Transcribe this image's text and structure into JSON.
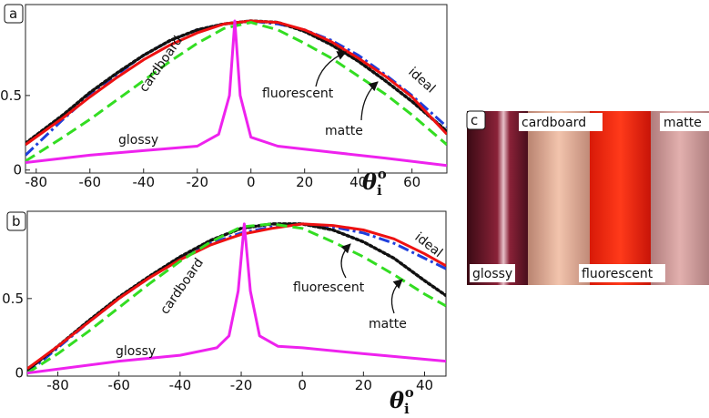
{
  "chart_data": [
    {
      "type": "line",
      "panel_label": "a",
      "xlabel": {
        "symbol": "θ",
        "sub": "i",
        "sup": "o"
      },
      "xlim": [
        -84,
        73
      ],
      "ylim": [
        -0.02,
        1.11
      ],
      "xticks": [
        -80,
        -60,
        -40,
        -20,
        0,
        20,
        40,
        60
      ],
      "yticks": [
        0,
        0.5
      ],
      "series": [
        {
          "name": "ideal",
          "color": "#1f3fdc",
          "line_style": "dashdot",
          "x": [
            -84,
            -70,
            -60,
            -50,
            -40,
            -30,
            -20,
            -10,
            0,
            10,
            20,
            30,
            40,
            50,
            60,
            73
          ],
          "values": [
            0.1,
            0.34,
            0.5,
            0.64,
            0.77,
            0.87,
            0.94,
            0.98,
            1.0,
            0.98,
            0.94,
            0.87,
            0.77,
            0.64,
            0.5,
            0.29
          ]
        },
        {
          "name": "cardboard",
          "color": "#111111",
          "line_style": "dotted",
          "x": [
            -84,
            -70,
            -60,
            -50,
            -40,
            -30,
            -20,
            -10,
            0,
            10,
            20,
            30,
            40,
            50,
            60,
            73
          ],
          "values": [
            0.18,
            0.37,
            0.52,
            0.65,
            0.77,
            0.87,
            0.94,
            0.98,
            1.0,
            0.99,
            0.93,
            0.84,
            0.73,
            0.6,
            0.46,
            0.26
          ]
        },
        {
          "name": "fluorescent",
          "color": "#ee1111",
          "line_style": "solid",
          "x": [
            -84,
            -70,
            -60,
            -50,
            -40,
            -30,
            -20,
            -10,
            0,
            10,
            20,
            30,
            40,
            50,
            60,
            73
          ],
          "values": [
            0.17,
            0.35,
            0.49,
            0.62,
            0.74,
            0.84,
            0.92,
            0.98,
            1.0,
            0.99,
            0.94,
            0.86,
            0.75,
            0.63,
            0.49,
            0.24
          ]
        },
        {
          "name": "matte",
          "color": "#33dd22",
          "line_style": "dashed",
          "x": [
            -84,
            -70,
            -60,
            -50,
            -40,
            -30,
            -20,
            -10,
            0,
            10,
            20,
            30,
            40,
            50,
            60,
            73
          ],
          "values": [
            0.06,
            0.22,
            0.34,
            0.47,
            0.6,
            0.73,
            0.85,
            0.95,
            0.99,
            0.94,
            0.85,
            0.75,
            0.63,
            0.51,
            0.37,
            0.17
          ]
        },
        {
          "name": "glossy",
          "color": "#ee22ee",
          "line_style": "solid",
          "x": [
            -84,
            -60,
            -40,
            -20,
            -12,
            -8,
            -6,
            -4,
            0,
            10,
            30,
            50,
            73
          ],
          "values": [
            0.05,
            0.1,
            0.13,
            0.16,
            0.24,
            0.5,
            1.0,
            0.5,
            0.22,
            0.16,
            0.12,
            0.08,
            0.03
          ]
        }
      ]
    },
    {
      "type": "line",
      "panel_label": "b",
      "xlabel": {
        "symbol": "θ",
        "sub": "i",
        "sup": "o"
      },
      "xlim": [
        -90,
        47
      ],
      "ylim": [
        -0.02,
        1.085
      ],
      "xticks": [
        -80,
        -60,
        -40,
        -20,
        0,
        20,
        40
      ],
      "yticks": [
        0,
        0.5
      ],
      "series": [
        {
          "name": "ideal",
          "color": "#1f3fdc",
          "line_style": "dashdot",
          "x": [
            -90,
            -80,
            -70,
            -60,
            -50,
            -40,
            -30,
            -20,
            -10,
            0,
            10,
            20,
            30,
            40,
            47
          ],
          "values": [
            0.0,
            0.17,
            0.34,
            0.5,
            0.64,
            0.77,
            0.87,
            0.94,
            0.98,
            1.0,
            0.98,
            0.94,
            0.87,
            0.77,
            0.7
          ]
        },
        {
          "name": "cardboard",
          "color": "#111111",
          "line_style": "dotted",
          "x": [
            -90,
            -80,
            -70,
            -60,
            -50,
            -40,
            -30,
            -20,
            -10,
            0,
            10,
            20,
            30,
            40,
            47
          ],
          "values": [
            0.02,
            0.18,
            0.35,
            0.51,
            0.65,
            0.78,
            0.89,
            0.97,
            1.0,
            1.0,
            0.96,
            0.88,
            0.77,
            0.62,
            0.52
          ]
        },
        {
          "name": "fluorescent",
          "color": "#ee1111",
          "line_style": "solid",
          "x": [
            -90,
            -80,
            -70,
            -60,
            -50,
            -40,
            -30,
            -20,
            -10,
            0,
            10,
            20,
            30,
            40,
            47
          ],
          "values": [
            0.03,
            0.18,
            0.34,
            0.5,
            0.64,
            0.76,
            0.86,
            0.93,
            0.97,
            1.0,
            0.99,
            0.96,
            0.9,
            0.8,
            0.72
          ]
        },
        {
          "name": "matte",
          "color": "#33dd22",
          "line_style": "dashed",
          "x": [
            -90,
            -80,
            -70,
            -60,
            -50,
            -40,
            -30,
            -20,
            -10,
            0,
            10,
            20,
            30,
            40,
            47
          ],
          "values": [
            0.0,
            0.13,
            0.28,
            0.44,
            0.6,
            0.75,
            0.88,
            0.98,
            1.0,
            0.97,
            0.88,
            0.78,
            0.66,
            0.53,
            0.45
          ]
        },
        {
          "name": "glossy",
          "color": "#ee22ee",
          "line_style": "solid",
          "x": [
            -90,
            -60,
            -40,
            -28,
            -24,
            -21,
            -19,
            -17,
            -14,
            -8,
            0,
            20,
            47
          ],
          "values": [
            0.0,
            0.08,
            0.12,
            0.17,
            0.25,
            0.55,
            1.0,
            0.55,
            0.25,
            0.18,
            0.17,
            0.13,
            0.08
          ]
        }
      ]
    }
  ],
  "photo": {
    "panel_label": "c",
    "labels": [
      "glossy",
      "cardboard",
      "fluorescent",
      "matte"
    ]
  }
}
